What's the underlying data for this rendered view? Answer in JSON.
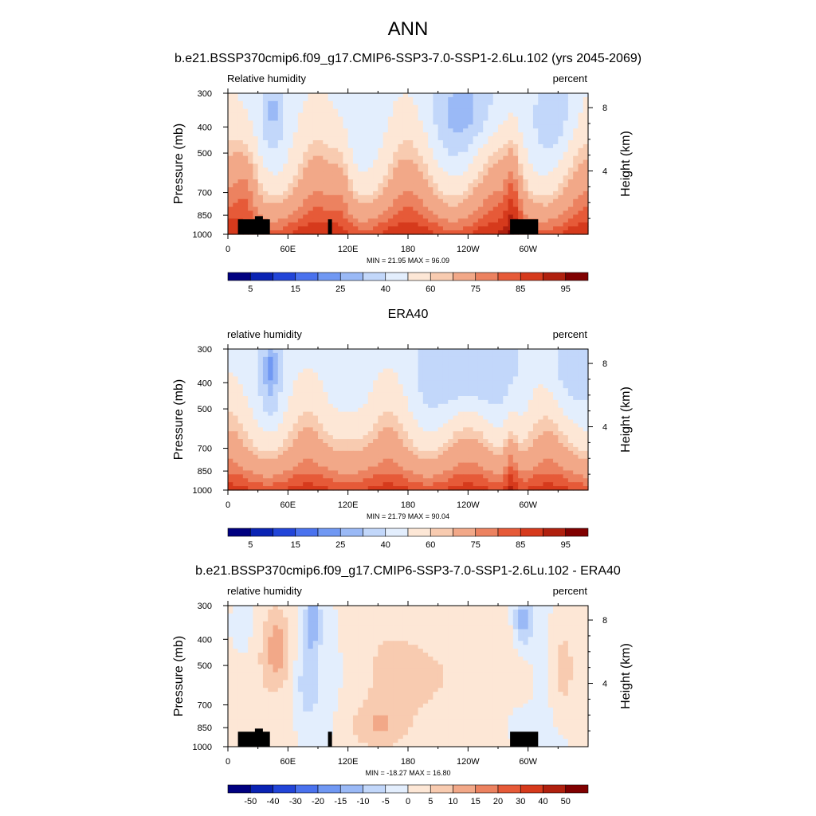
{
  "figure": {
    "title": "ANN"
  },
  "colors": {
    "abs_levels": [
      "#000080",
      "#0a23b3",
      "#2245d8",
      "#4a72ee",
      "#7098f3",
      "#9ab9f6",
      "#c2d7fa",
      "#e3eefd",
      "#fde7d6",
      "#f8cbb0",
      "#f2a888",
      "#ec8260",
      "#e65a38",
      "#d63a1c",
      "#b0200e",
      "#800000"
    ],
    "diff_levels": [
      "#000080",
      "#0a23b3",
      "#2245d8",
      "#4a72ee",
      "#7098f3",
      "#9ab9f6",
      "#c2d7fa",
      "#e3eefd",
      "#fde7d6",
      "#f8cbb0",
      "#f2a888",
      "#ec8260",
      "#e65a38",
      "#d63a1c",
      "#b0200e",
      "#800000"
    ],
    "topography": "#000000"
  },
  "chart_data": [
    {
      "type": "heatmap",
      "title": "b.e21.BSSP370cmip6.f09_g17.CMIP6-SSP3-7.0-SSP1-2.6Lu.102 (yrs 2045-2069)",
      "left_label": "Relative humidity",
      "right_label": "percent",
      "ylabel": "Pressure (mb)",
      "y2label": "Height (km)",
      "xticks": [
        "0",
        "60E",
        "120E",
        "180",
        "120W",
        "60W"
      ],
      "x_values_deg": [
        0,
        60,
        120,
        180,
        240,
        300
      ],
      "xlim": [
        0,
        360
      ],
      "yticks": [
        "300",
        "400",
        "500",
        "700",
        "850",
        "1000"
      ],
      "y_values_mb": [
        300,
        400,
        500,
        700,
        850,
        1000
      ],
      "ylim": [
        1000,
        300
      ],
      "y2ticks": [
        "8",
        "4"
      ],
      "y2_values_km": [
        8,
        4
      ],
      "stats": "MIN = 21.95  MAX = 96.09",
      "min": 21.95,
      "max": 96.09,
      "colorbar_labels": [
        "5",
        "15",
        "25",
        "40",
        "60",
        "75",
        "85",
        "95"
      ]
    },
    {
      "type": "heatmap",
      "title": "ERA40",
      "left_label": "relative humidity",
      "right_label": "percent",
      "ylabel": "Pressure (mb)",
      "y2label": "Height (km)",
      "xticks": [
        "0",
        "60E",
        "120E",
        "180",
        "120W",
        "60W"
      ],
      "x_values_deg": [
        0,
        60,
        120,
        180,
        240,
        300
      ],
      "xlim": [
        0,
        360
      ],
      "yticks": [
        "300",
        "400",
        "500",
        "700",
        "850",
        "1000"
      ],
      "y_values_mb": [
        300,
        400,
        500,
        700,
        850,
        1000
      ],
      "ylim": [
        1000,
        300
      ],
      "y2ticks": [
        "8",
        "4"
      ],
      "y2_values_km": [
        8,
        4
      ],
      "stats": "MIN = 21.79  MAX = 90.04",
      "min": 21.79,
      "max": 90.04,
      "colorbar_labels": [
        "5",
        "15",
        "25",
        "40",
        "60",
        "75",
        "85",
        "95"
      ]
    },
    {
      "type": "heatmap",
      "title": "b.e21.BSSP370cmip6.f09_g17.CMIP6-SSP3-7.0-SSP1-2.6Lu.102 - ERA40",
      "left_label": "relative humidity",
      "right_label": "percent",
      "ylabel": "Pressure (mb)",
      "y2label": "Height (km)",
      "xticks": [
        "0",
        "60E",
        "120E",
        "180",
        "120W",
        "60W"
      ],
      "x_values_deg": [
        0,
        60,
        120,
        180,
        240,
        300
      ],
      "xlim": [
        0,
        360
      ],
      "yticks": [
        "300",
        "400",
        "500",
        "700",
        "850",
        "1000"
      ],
      "y_values_mb": [
        300,
        400,
        500,
        700,
        850,
        1000
      ],
      "ylim": [
        1000,
        300
      ],
      "y2ticks": [
        "8",
        "4"
      ],
      "y2_values_km": [
        8,
        4
      ],
      "stats": "MIN = -18.27  MAX = 16.80",
      "min": -18.27,
      "max": 16.8,
      "colorbar_labels": [
        "-50",
        "-40",
        "-30",
        "-20",
        "-15",
        "-10",
        "-5",
        "0",
        "5",
        "10",
        "15",
        "20",
        "30",
        "40",
        "50"
      ]
    }
  ]
}
